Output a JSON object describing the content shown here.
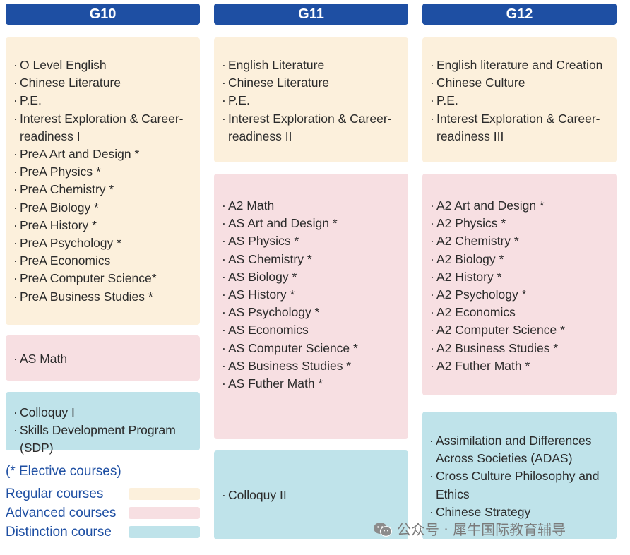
{
  "headers": {
    "g10": "G10",
    "g11": "G11",
    "g12": "G12"
  },
  "g10": {
    "regular": [
      "O Level English",
      "Chinese Literature",
      "P.E.",
      "Interest Exploration & Career-readiness I",
      "PreA Art and Design *",
      "PreA Physics *",
      "PreA Chemistry *",
      "PreA Biology *",
      "PreA History *",
      "PreA Psychology *",
      "PreA  Economics",
      "PreA Computer Science*",
      "PreA Business Studies *"
    ],
    "advanced": [
      "AS Math"
    ],
    "distinction": [
      "Colloquy I",
      "Skills Development Program (SDP)"
    ]
  },
  "g11": {
    "regular": [
      "English Literature",
      "Chinese Literature",
      "P.E.",
      "Interest Exploration & Career-readiness II"
    ],
    "advanced": [
      "A2 Math",
      "AS Art and Design *",
      "AS Physics *",
      "AS Chemistry *",
      "AS Biology *",
      "AS History *",
      "AS Psychology *",
      "AS Economics",
      "AS Computer Science *",
      "AS Business Studies *",
      "AS Futher Math *"
    ],
    "distinction": [
      "Colloquy II"
    ]
  },
  "g12": {
    "regular": [
      "English literature and Creation",
      "Chinese Culture",
      "P.E.",
      "Interest Exploration & Career-readiness III"
    ],
    "advanced": [
      "A2 Art and Design *",
      "A2 Physics *",
      "A2 Chemistry *",
      "A2 Biology *",
      "A2 History *",
      "A2 Psychology *",
      "A2 Economics",
      "A2 Computer Science *",
      "A2 Business Studies *",
      "A2 Futher Math *"
    ],
    "distinction": [
      "Assimilation and Differences Across Societies (ADAS)",
      "Cross Culture Philosophy and Ethics",
      "Chinese Strategy"
    ]
  },
  "legend": {
    "elective_note": "(* Elective courses)",
    "regular": "Regular courses",
    "advanced": "Advanced courses",
    "distinction": "Distinction course"
  },
  "colors": {
    "header": "#1e4fa3",
    "regular": "#fcf0dc",
    "advanced": "#f7dfe2",
    "distinction": "#bfe3ea"
  },
  "watermark": {
    "icon": "wechat-icon",
    "text": "公众号 · 犀牛国际教育辅导"
  }
}
